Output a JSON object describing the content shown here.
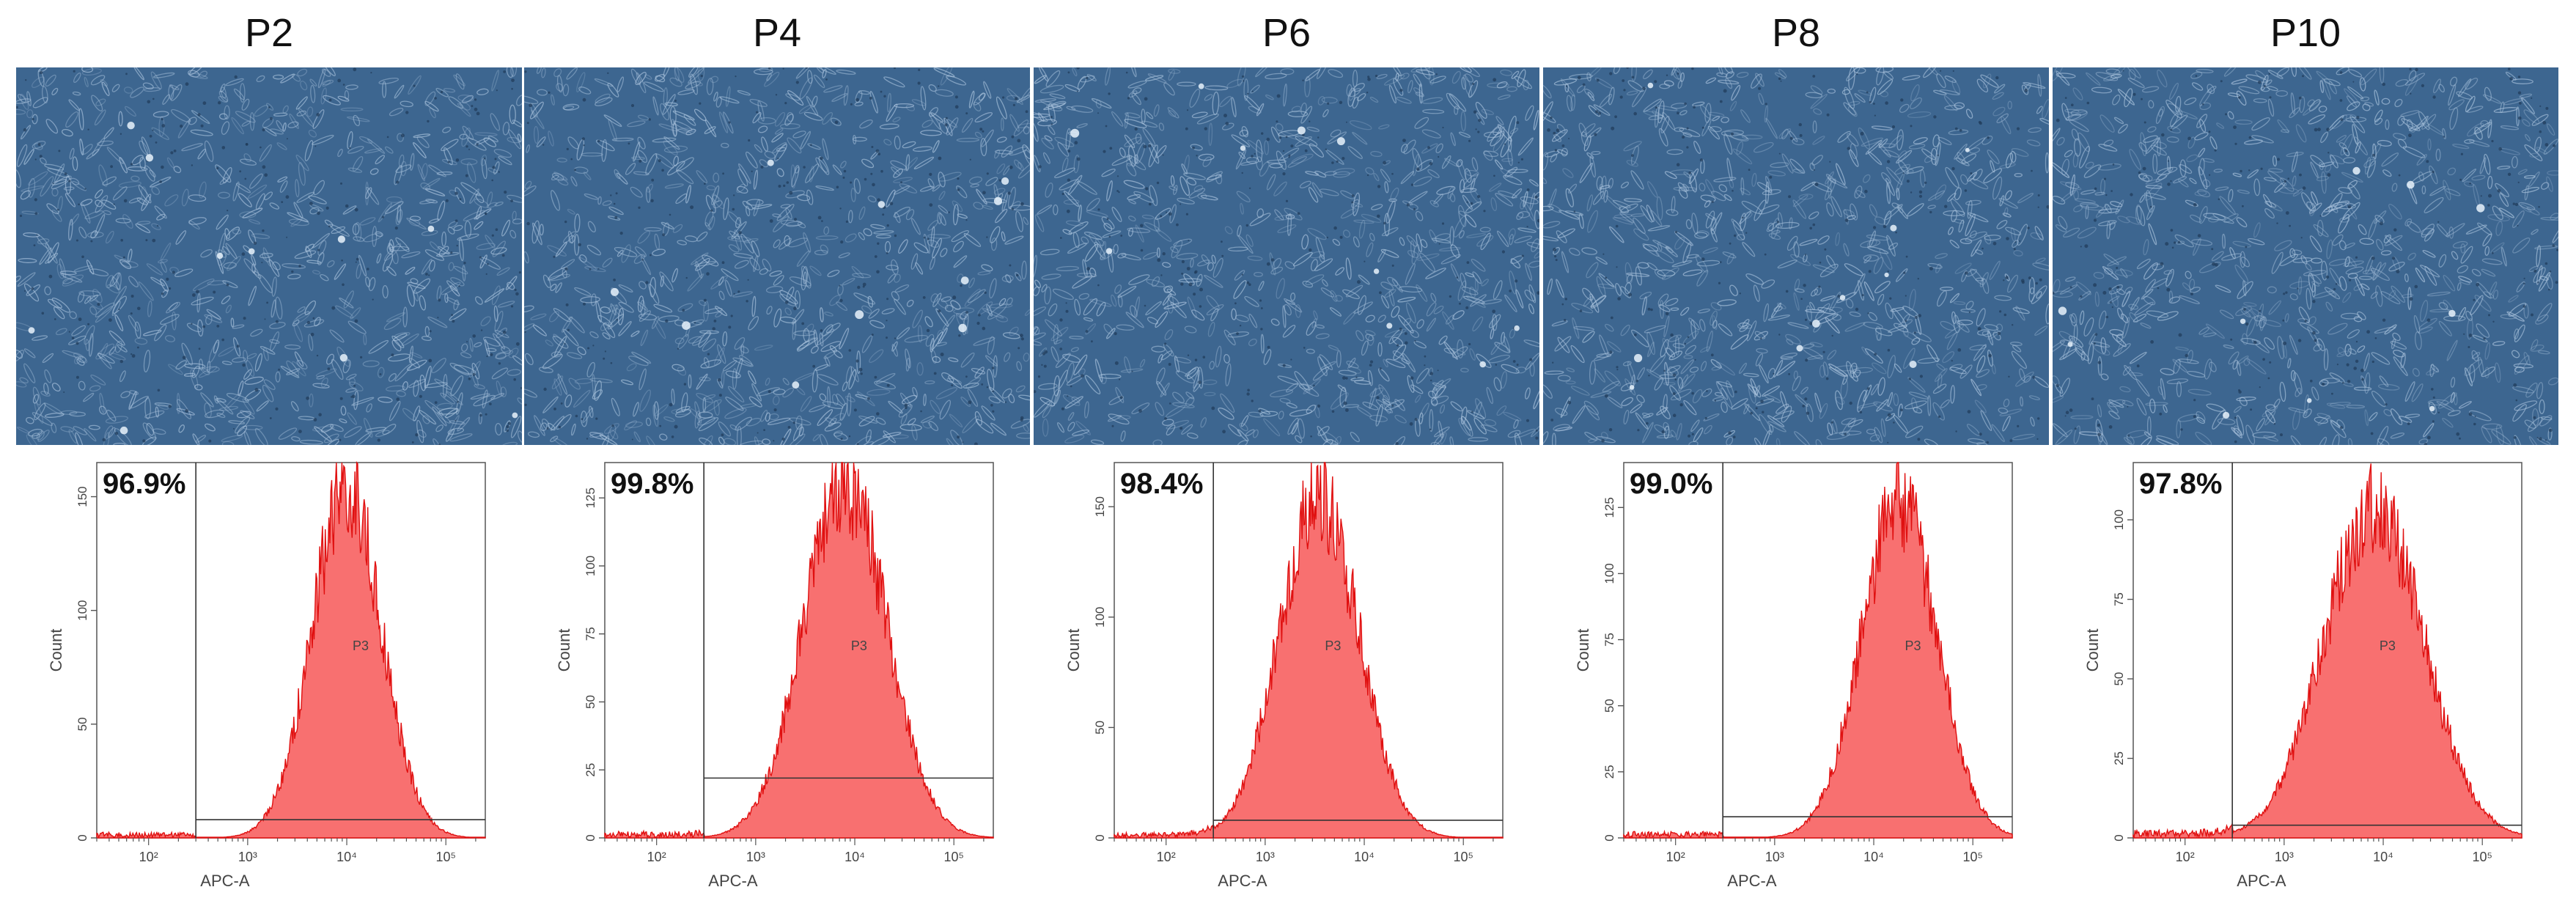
{
  "figure": {
    "panels": [
      {
        "passage": "P2",
        "percent": "96.9%",
        "gate_label": "P3",
        "xlabel": "APC-A",
        "ylabel": "Count",
        "y_ticks": [
          "0",
          "50",
          "100",
          "150"
        ],
        "x_ticks": [
          "10²",
          "10³",
          "10⁴",
          "10⁵"
        ]
      },
      {
        "passage": "P4",
        "percent": "99.8%",
        "gate_label": "P3",
        "xlabel": "APC-A",
        "ylabel": "Count",
        "y_ticks": [
          "0",
          "25",
          "50",
          "75",
          "100",
          "125"
        ],
        "x_ticks": [
          "10²",
          "10³",
          "10⁴",
          "10⁵"
        ]
      },
      {
        "passage": "P6",
        "percent": "98.4%",
        "gate_label": "P3",
        "xlabel": "APC-A",
        "ylabel": "Count",
        "y_ticks": [
          "0",
          "50",
          "100",
          "150"
        ],
        "x_ticks": [
          "10²",
          "10³",
          "10⁴",
          "10⁵"
        ]
      },
      {
        "passage": "P8",
        "percent": "99.0%",
        "gate_label": "P3",
        "xlabel": "APC-A",
        "ylabel": "Count",
        "y_ticks": [
          "0",
          "25",
          "50",
          "75",
          "100",
          "125"
        ],
        "x_ticks": [
          "10²",
          "10³",
          "10⁴",
          "10⁵"
        ]
      },
      {
        "passage": "P10",
        "percent": "97.8%",
        "gate_label": "P3",
        "xlabel": "APC-A",
        "ylabel": "Count",
        "y_ticks": [
          "0",
          "25",
          "50",
          "75",
          "100"
        ],
        "x_ticks": [
          "10²",
          "10³",
          "10⁴",
          "10⁵"
        ]
      }
    ]
  },
  "chart_data": [
    {
      "type": "area",
      "title": "P2",
      "xlabel": "APC-A",
      "ylabel": "Count",
      "xscale": "log",
      "xlim": [
        30,
        250000
      ],
      "ylim": [
        0,
        165
      ],
      "yticks": [
        0,
        50,
        100,
        150
      ],
      "xticks": [
        100,
        1000,
        10000,
        100000
      ],
      "peak_x": 10000,
      "peak_y": 160,
      "width_log": 0.35,
      "gate_low": 300,
      "gate_high": 250000,
      "gated_percent": 96.9,
      "gate_label": "P3"
    },
    {
      "type": "area",
      "title": "P4",
      "xlabel": "APC-A",
      "ylabel": "Count",
      "xscale": "log",
      "xlim": [
        30,
        250000
      ],
      "ylim": [
        0,
        138
      ],
      "yticks": [
        0,
        25,
        50,
        75,
        100,
        125
      ],
      "xticks": [
        100,
        1000,
        10000,
        100000
      ],
      "peak_x": 8000,
      "peak_y": 135,
      "width_log": 0.42,
      "gate_low": 300,
      "gate_high": 250000,
      "gated_percent": 99.8,
      "gate_label": "P3"
    },
    {
      "type": "area",
      "title": "P6",
      "xlabel": "APC-A",
      "ylabel": "Count",
      "xscale": "log",
      "xlim": [
        30,
        250000
      ],
      "ylim": [
        0,
        170
      ],
      "yticks": [
        0,
        50,
        100,
        150
      ],
      "xticks": [
        100,
        1000,
        10000,
        100000
      ],
      "peak_x": 3500,
      "peak_y": 160,
      "width_log": 0.4,
      "gate_low": 300,
      "gate_high": 250000,
      "gated_percent": 98.4,
      "gate_label": "P3"
    },
    {
      "type": "area",
      "title": "P8",
      "xlabel": "APC-A",
      "ylabel": "Count",
      "xscale": "log",
      "xlim": [
        30,
        250000
      ],
      "ylim": [
        0,
        142
      ],
      "yticks": [
        0,
        25,
        50,
        75,
        100,
        125
      ],
      "xticks": [
        100,
        1000,
        10000,
        100000
      ],
      "peak_x": 18000,
      "peak_y": 132,
      "width_log": 0.38,
      "gate_low": 300,
      "gate_high": 250000,
      "gated_percent": 99.0,
      "gate_label": "P3"
    },
    {
      "type": "area",
      "title": "P10",
      "xlabel": "APC-A",
      "ylabel": "Count",
      "xscale": "log",
      "xlim": [
        30,
        250000
      ],
      "ylim": [
        0,
        118
      ],
      "yticks": [
        0,
        25,
        50,
        75,
        100
      ],
      "xticks": [
        100,
        1000,
        10000,
        100000
      ],
      "peak_x": 8000,
      "peak_y": 108,
      "width_log": 0.5,
      "gate_low": 300,
      "gate_high": 250000,
      "gated_percent": 97.8,
      "gate_label": "P3"
    }
  ],
  "colors": {
    "histogram_fill": "#f87070",
    "histogram_edge": "#e01010",
    "micro_bg": "#3d6690",
    "cell": "#a9c2dc"
  }
}
